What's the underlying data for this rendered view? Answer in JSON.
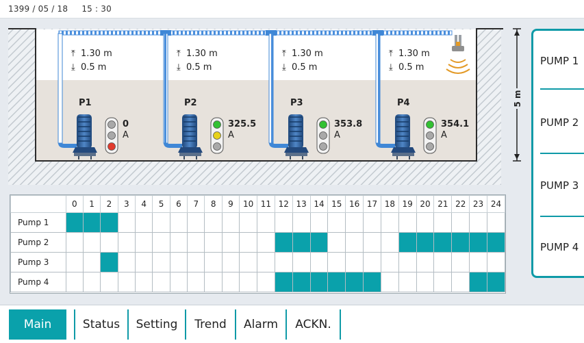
{
  "header": {
    "date": "1399 / 05 / 18",
    "time": "15 : 30"
  },
  "tank": {
    "depth_label": "5 m"
  },
  "pumps": [
    {
      "name": "P1",
      "level_on": "1.30 m",
      "level_off": "0.5 m",
      "current": "0",
      "unit": "A",
      "lights": [
        "off",
        "off",
        "red"
      ]
    },
    {
      "name": "P2",
      "level_on": "1.30 m",
      "level_off": "0.5 m",
      "current": "325.5",
      "unit": "A",
      "lights": [
        "green",
        "yellow",
        "off"
      ]
    },
    {
      "name": "P3",
      "level_on": "1.30 m",
      "level_off": "0.5 m",
      "current": "353.8",
      "unit": "A",
      "lights": [
        "green",
        "off",
        "off"
      ]
    },
    {
      "name": "P4",
      "level_on": "1.30 m",
      "level_off": "0.5 m",
      "current": "354.1",
      "unit": "A",
      "lights": [
        "green",
        "off",
        "off"
      ]
    }
  ],
  "schedule": {
    "hours": [
      "0",
      "1",
      "2",
      "3",
      "4",
      "5",
      "6",
      "7",
      "8",
      "9",
      "10",
      "11",
      "12",
      "13",
      "14",
      "15",
      "16",
      "17",
      "18",
      "19",
      "20",
      "21",
      "22",
      "23",
      "24"
    ],
    "rows": [
      {
        "label": "Pump 1",
        "on": [
          0,
          1,
          2
        ]
      },
      {
        "label": "Pump 2",
        "on": [
          12,
          13,
          14,
          19,
          20,
          21,
          22,
          23,
          24
        ]
      },
      {
        "label": "Pump 3",
        "on": [
          2
        ]
      },
      {
        "label": "Pump 4",
        "on": [
          12,
          13,
          14,
          15,
          16,
          17,
          23,
          24
        ]
      }
    ]
  },
  "side_buttons": [
    "PUMP 1",
    "PUMP 2",
    "PUMP 3",
    "PUMP 4"
  ],
  "nav": {
    "tabs": [
      "Main",
      "Status",
      "Setting",
      "Trend",
      "Alarm",
      "ACKN."
    ],
    "active": 0
  },
  "colors": {
    "accent": "#0aa1ab",
    "pipe": "#3f87d6",
    "pump": "#2f5f9a",
    "lamp_red": "#e23b2e",
    "lamp_green": "#33c133",
    "lamp_yellow": "#e7d21b",
    "lamp_off": "#a9a9a9"
  }
}
